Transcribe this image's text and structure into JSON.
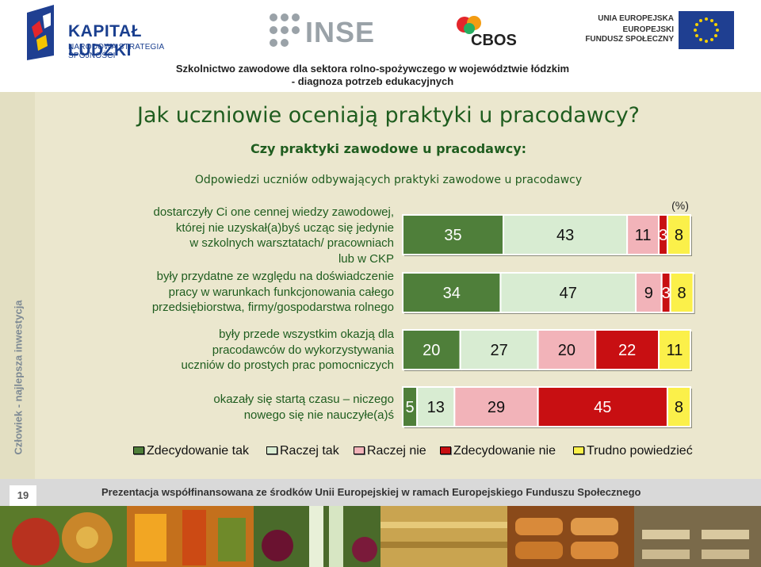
{
  "header": {
    "logo_kl_name": "KAPITAŁ LUDZKI",
    "logo_kl_sub": "NARODOWA STRATEGIA SPÓJNOŚCI",
    "logo_inse": "INSE",
    "logo_cbos": "CBOS",
    "ue_line1": "UNIA EUROPEJSKA",
    "ue_line2": "EUROPEJSKI",
    "ue_line3": "FUNDUSZ SPOŁECZNY",
    "project_title_1": "Szkolnictwo zawodowe dla sektora rolno-spożywczego w województwie łódzkim",
    "project_title_2": "- diagnoza potrzeb edukacyjnych"
  },
  "side_text": "Człowiek - najlepsza inwestycja",
  "slide": {
    "title": "Jak uczniowie oceniają praktyki u pracodawcy?",
    "subtitle": "Czy praktyki zawodowe u pracodawcy:",
    "note": "Odpowiedzi uczniów odbywających praktyki zawodowe u pracodawcy"
  },
  "chart_data": {
    "type": "bar",
    "orientation": "horizontal",
    "stacked": true,
    "unit_label": "(%)",
    "categories": [
      [
        "dostarczyły Ci one cennej wiedzy zawodowej,",
        "której nie uzyskał(a)byś ucząc się jedynie",
        "w szkolnych warsztatach/ pracowniach",
        "lub w CKP"
      ],
      [
        "były przydatne ze względu na doświadczenie",
        "pracy w warunkach funkcjonowania całego",
        "przedsiębiorstwa, firmy/gospodarstwa rolnego"
      ],
      [
        "były przede wszystkim okazją dla",
        "pracodawców do wykorzystywania",
        "uczniów do prostych prac pomocniczych"
      ],
      [
        "okazały się startą czasu – niczego",
        "nowego się nie nauczyłe(a)ś"
      ]
    ],
    "series": [
      {
        "name": "Zdecydowanie tak",
        "color": "#4f7f3a",
        "values": [
          35,
          34,
          20,
          5
        ]
      },
      {
        "name": "Raczej tak",
        "color": "#d8ecd2",
        "values": [
          43,
          47,
          27,
          13
        ]
      },
      {
        "name": "Raczej nie",
        "color": "#f2b3b9",
        "values": [
          11,
          9,
          20,
          29
        ]
      },
      {
        "name": "Zdecydowanie nie",
        "color": "#c80f12",
        "values": [
          3,
          3,
          22,
          45
        ]
      },
      {
        "name": "Trudno powiedzieć",
        "color": "#fbf04a",
        "values": [
          8,
          8,
          11,
          8
        ]
      }
    ],
    "xlim": [
      0,
      100
    ],
    "legend_position": "bottom"
  },
  "footer": {
    "page_number": "19",
    "text": "Prezentacja współfinansowana ze środków Unii Europejskiej w ramach Europejskiego Funduszu Społecznego"
  }
}
